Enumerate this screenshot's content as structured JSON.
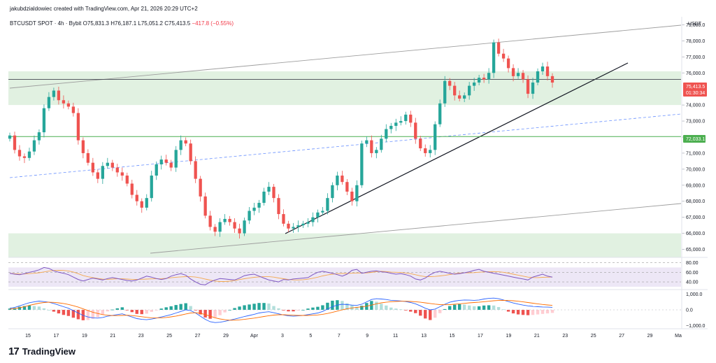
{
  "header": {
    "credit": "jakubdzialdowiec created with TradingView.com, Apr 21, 2026 20:29 UTC+2",
    "symbol": "BTCUSDT SPOT · 4h · Bybit",
    "ohlc": {
      "open": "O75,831.3",
      "high": "H76,187.1",
      "low": "L75,051.2",
      "close": "C75,413.5",
      "change": "−417.8 (−0.55%)"
    }
  },
  "logo": {
    "mark": "17",
    "text": "TradingView"
  },
  "colors": {
    "up": "#26a69a",
    "down": "#ef5350",
    "zone": "#c8e6c9",
    "rsi_band": "#ede7f6",
    "rsi_line": "#7e57c2",
    "rsi_ma": "#f4a950",
    "macd_line": "#2962ff",
    "signal_line": "#ff6d00",
    "support_line": "#4caf50"
  },
  "chart_data": {
    "type": "candlestick",
    "price_unit": "USDT",
    "y_ticks": [
      "79,000.0",
      "78,000.0",
      "77,000.0",
      "76,000.0",
      "74,000.0",
      "73,000.0",
      "72,000.0",
      "71,000.0",
      "70,000.0",
      "69,000.0",
      "68,000.0",
      "67,000.0",
      "66,000.0",
      "65,000.0"
    ],
    "ylim": [
      64500,
      79500
    ],
    "x_ticks": [
      "15",
      "17",
      "19",
      "21",
      "23",
      "25",
      "27",
      "29",
      "Apr",
      "3",
      "5",
      "7",
      "9",
      "11",
      "13",
      "15",
      "17",
      "19",
      "21",
      "23",
      "25",
      "27",
      "29",
      "Ma"
    ],
    "price_labels": {
      "last": "75,413.5",
      "countdown": "01:30:34",
      "support": "72,033.1"
    },
    "last_price": 75413.5,
    "horizontal_lines": {
      "resistance_line": 75600,
      "support_line": 72033.1
    },
    "zones": [
      {
        "from": 74000,
        "to": 76100
      },
      {
        "from": 64500,
        "to": 66000
      }
    ],
    "closes": [
      72100,
      71200,
      70800,
      70700,
      71100,
      71800,
      72300,
      73800,
      74500,
      74900,
      74300,
      74100,
      73900,
      73500,
      71800,
      71000,
      70400,
      69800,
      69400,
      70200,
      70400,
      70100,
      69800,
      69600,
      69100,
      68400,
      68000,
      67600,
      68200,
      69600,
      70300,
      70600,
      70400,
      70100,
      71200,
      71800,
      71600,
      70500,
      69400,
      68300,
      67100,
      66400,
      66100,
      66700,
      66900,
      66700,
      66300,
      66000,
      66800,
      67400,
      67600,
      67900,
      68600,
      68900,
      68200,
      67200,
      66600,
      66300,
      66400,
      66500,
      66600,
      66700,
      67000,
      67300,
      67400,
      68200,
      69000,
      69600,
      69200,
      68600,
      68000,
      69000,
      71600,
      71800,
      71000,
      71200,
      71900,
      72500,
      72700,
      72900,
      73000,
      73400,
      72900,
      71900,
      71300,
      71000,
      71200,
      72800,
      74100,
      75500,
      75200,
      74600,
      74400,
      74600,
      75200,
      75400,
      75700,
      75600,
      76000,
      77900,
      77200,
      76900,
      76300,
      75800,
      76000,
      75600,
      74700,
      75400,
      76100,
      76400,
      75800,
      75400
    ],
    "rsi": {
      "levels": [
        "80.00",
        "60.00",
        "40.00"
      ],
      "values": [
        58,
        56,
        55,
        57,
        60,
        62,
        65,
        70,
        68,
        63,
        60,
        58,
        55,
        50,
        45,
        42,
        45,
        48,
        46,
        44,
        47,
        49,
        47,
        45,
        43,
        42,
        44,
        48,
        52,
        50,
        47,
        45,
        47,
        52,
        55,
        57,
        54,
        46,
        40,
        35,
        34,
        40,
        44,
        47,
        46,
        45,
        44,
        48,
        53,
        55,
        56,
        52,
        48,
        44,
        42,
        40,
        45,
        44,
        46,
        47,
        48,
        49,
        55,
        60,
        62,
        60,
        58,
        55,
        52,
        56,
        64,
        66,
        58,
        60,
        62,
        63,
        61,
        60,
        58,
        56,
        57,
        55,
        52,
        46,
        44,
        48,
        55,
        60,
        62,
        60,
        58,
        56,
        57,
        59,
        61,
        64,
        66,
        62,
        60,
        58,
        56,
        54,
        52,
        50,
        48,
        46,
        44,
        50,
        53,
        56,
        52,
        50
      ]
    },
    "macd": {
      "levels": [
        "1,000.0",
        "0.0",
        "−1,000.0"
      ],
      "macd_values": [
        100,
        150,
        250,
        350,
        450,
        500,
        550,
        520,
        480,
        400,
        300,
        200,
        100,
        -50,
        -200,
        -350,
        -450,
        -500,
        -520,
        -480,
        -400,
        -350,
        -300,
        -250,
        -350,
        -450,
        -550,
        -600,
        -620,
        -580,
        -520,
        -450,
        -380,
        -300,
        -200,
        -100,
        0,
        -50,
        -200,
        -400,
        -600,
        -750,
        -800,
        -780,
        -720,
        -650,
        -580,
        -500,
        -420,
        -350,
        -280,
        -200,
        -150,
        -120,
        -180,
        -250,
        -320,
        -380,
        -400,
        -380,
        -350,
        -300,
        -250,
        -200,
        -100,
        50,
        200,
        300,
        350,
        330,
        300,
        280,
        350,
        500,
        650,
        700,
        680,
        650,
        600,
        580,
        560,
        520,
        460,
        380,
        250,
        100,
        0,
        50,
        200,
        350,
        480,
        550,
        600,
        620,
        610,
        600,
        620,
        680,
        720,
        740,
        700,
        620,
        520,
        430,
        360,
        300,
        250,
        220,
        200,
        180,
        170,
        160
      ],
      "signal_values": [
        50,
        80,
        130,
        200,
        280,
        350,
        420,
        460,
        480,
        470,
        440,
        400,
        340,
        260,
        170,
        60,
        -50,
        -150,
        -230,
        -300,
        -340,
        -360,
        -360,
        -350,
        -340,
        -360,
        -390,
        -430,
        -470,
        -500,
        -510,
        -500,
        -480,
        -440,
        -390,
        -330,
        -260,
        -200,
        -180,
        -220,
        -300,
        -400,
        -500,
        -570,
        -620,
        -650,
        -650,
        -630,
        -600,
        -560,
        -520,
        -470,
        -420,
        -370,
        -330,
        -310,
        -310,
        -320,
        -340,
        -350,
        -350,
        -350,
        -340,
        -320,
        -280,
        -230,
        -160,
        -80,
        0,
        70,
        120,
        160,
        190,
        230,
        300,
        380,
        440,
        480,
        510,
        530,
        540,
        540,
        530,
        510,
        480,
        440,
        400,
        360,
        330,
        320,
        330,
        350,
        380,
        410,
        440,
        460,
        480,
        510,
        540,
        570,
        590,
        600,
        590,
        570,
        540,
        500,
        460,
        420,
        380,
        340,
        310,
        280
      ]
    }
  }
}
